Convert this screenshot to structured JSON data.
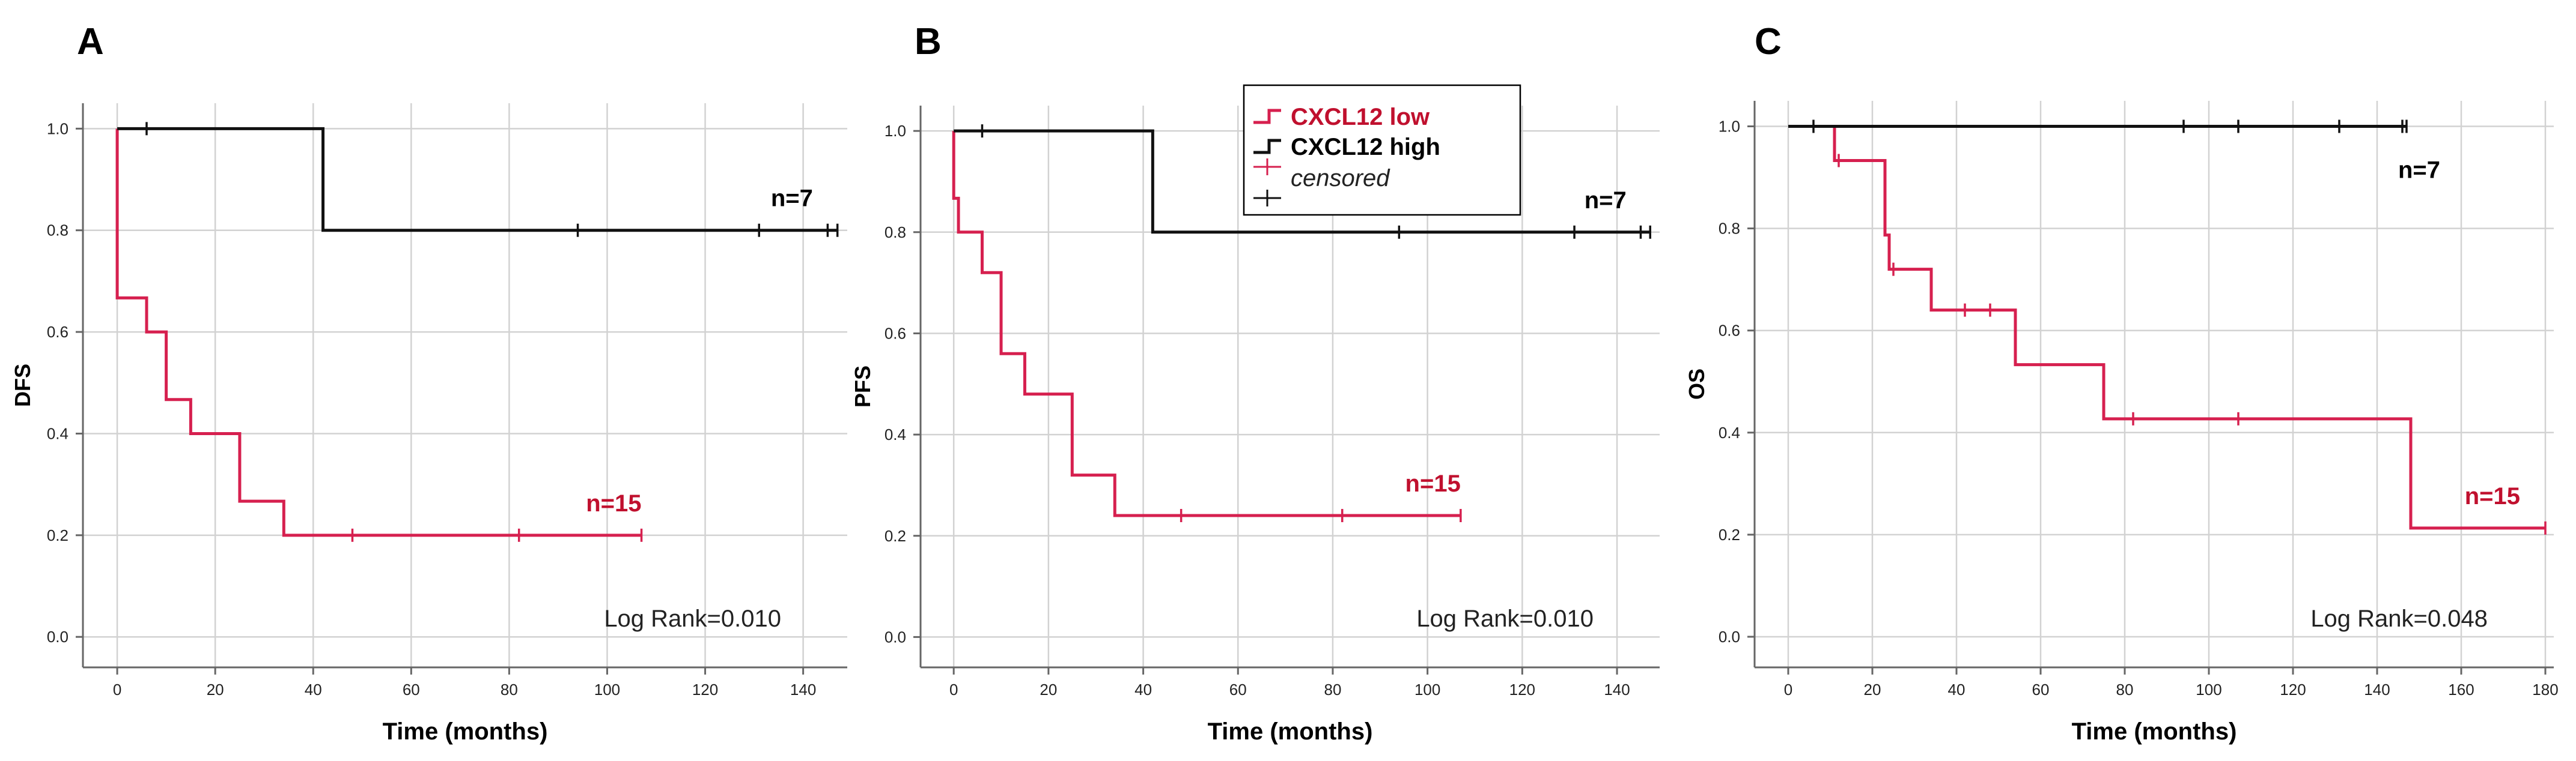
{
  "colors": {
    "low": "#d6204f",
    "high": "#111111",
    "grid": "#d2d2d2",
    "axis": "#666666"
  },
  "legend": {
    "items": [
      {
        "label": "CXCL12 low",
        "series": "low",
        "type": "step"
      },
      {
        "label": "CXCL12 high",
        "series": "high",
        "type": "step"
      },
      {
        "label": "censored",
        "series": "low",
        "type": "cross"
      },
      {
        "label": "censored",
        "series": "high",
        "type": "cross"
      }
    ]
  },
  "chart_data": [
    {
      "type": "line",
      "panel": "A",
      "ylabel": "DFS",
      "xlabel": "Time (months)",
      "xlim": [
        -7,
        149
      ],
      "ylim": [
        -0.06,
        1.05
      ],
      "xticks": [
        0,
        20,
        40,
        60,
        80,
        100,
        120,
        140
      ],
      "yticks": [
        0.0,
        0.2,
        0.4,
        0.6,
        0.8,
        1.0
      ],
      "grid": true,
      "log_rank": "Log Rank=0.010",
      "series": [
        {
          "name": "CXCL12 low",
          "key": "low",
          "n_label": "n=15",
          "n_at": [
            107,
            0.2
          ],
          "steps": [
            [
              0,
              1.0
            ],
            [
              0,
              0.667
            ],
            [
              6,
              0.667
            ],
            [
              6,
              0.6
            ],
            [
              10,
              0.6
            ],
            [
              10,
              0.467
            ],
            [
              15,
              0.467
            ],
            [
              15,
              0.4
            ],
            [
              25,
              0.4
            ],
            [
              25,
              0.267
            ],
            [
              34,
              0.267
            ],
            [
              34,
              0.2
            ],
            [
              107,
              0.2
            ]
          ],
          "censored": [
            [
              48,
              0.2
            ],
            [
              82,
              0.2
            ],
            [
              107,
              0.2
            ]
          ]
        },
        {
          "name": "CXCL12 high",
          "key": "high",
          "n_label": "n=7",
          "n_at": [
            142,
            0.8
          ],
          "steps": [
            [
              0,
              1.0
            ],
            [
              42,
              1.0
            ],
            [
              42,
              0.8
            ],
            [
              147,
              0.8
            ]
          ],
          "censored": [
            [
              6,
              1.0
            ],
            [
              94,
              0.8
            ],
            [
              131,
              0.8
            ],
            [
              145,
              0.8
            ],
            [
              147,
              0.8
            ]
          ]
        }
      ]
    },
    {
      "type": "line",
      "panel": "B",
      "ylabel": "PFS",
      "xlabel": "Time (months)",
      "xlim": [
        -7,
        149
      ],
      "ylim": [
        -0.06,
        1.05
      ],
      "xticks": [
        0,
        20,
        40,
        60,
        80,
        100,
        120,
        140
      ],
      "yticks": [
        0.0,
        0.2,
        0.4,
        0.6,
        0.8,
        1.0
      ],
      "grid": true,
      "log_rank": "Log Rank=0.010",
      "series": [
        {
          "name": "CXCL12 low",
          "key": "low",
          "n_label": "n=15",
          "n_at": [
            107,
            0.24
          ],
          "steps": [
            [
              0,
              1.0
            ],
            [
              0,
              0.867
            ],
            [
              1,
              0.867
            ],
            [
              1,
              0.8
            ],
            [
              6,
              0.8
            ],
            [
              6,
              0.72
            ],
            [
              10,
              0.72
            ],
            [
              10,
              0.56
            ],
            [
              15,
              0.56
            ],
            [
              15,
              0.48
            ],
            [
              25,
              0.48
            ],
            [
              25,
              0.32
            ],
            [
              34,
              0.32
            ],
            [
              34,
              0.24
            ],
            [
              107,
              0.24
            ]
          ],
          "censored": [
            [
              48,
              0.24
            ],
            [
              82,
              0.24
            ],
            [
              107,
              0.24
            ]
          ]
        },
        {
          "name": "CXCL12 high",
          "key": "high",
          "n_label": "n=7",
          "n_at": [
            142,
            0.8
          ],
          "steps": [
            [
              0,
              1.0
            ],
            [
              42,
              1.0
            ],
            [
              42,
              0.8
            ],
            [
              147,
              0.8
            ]
          ],
          "censored": [
            [
              6,
              1.0
            ],
            [
              94,
              0.8
            ],
            [
              131,
              0.8
            ],
            [
              145,
              0.8
            ],
            [
              147,
              0.8
            ]
          ]
        }
      ]
    },
    {
      "type": "line",
      "panel": "C",
      "ylabel": "OS",
      "xlabel": "Time (months)",
      "xlim": [
        -8,
        182
      ],
      "ylim": [
        -0.06,
        1.05
      ],
      "xticks": [
        0,
        20,
        40,
        60,
        80,
        100,
        120,
        140,
        160,
        180
      ],
      "yticks": [
        0.0,
        0.2,
        0.4,
        0.6,
        0.8,
        1.0
      ],
      "grid": true,
      "log_rank": "Log Rank=0.048",
      "series": [
        {
          "name": "CXCL12 low",
          "key": "low",
          "n_label": "n=15",
          "n_at": [
            174,
            0.213
          ],
          "steps": [
            [
              11,
              1.0
            ],
            [
              11,
              0.933
            ],
            [
              23,
              0.933
            ],
            [
              23,
              0.787
            ],
            [
              24,
              0.787
            ],
            [
              24,
              0.72
            ],
            [
              34,
              0.72
            ],
            [
              34,
              0.64
            ],
            [
              54,
              0.64
            ],
            [
              54,
              0.533
            ],
            [
              75,
              0.533
            ],
            [
              75,
              0.427
            ],
            [
              148,
              0.427
            ],
            [
              148,
              0.213
            ],
            [
              180,
              0.213
            ]
          ],
          "censored": [
            [
              12,
              0.933
            ],
            [
              25,
              0.72
            ],
            [
              42,
              0.64
            ],
            [
              48,
              0.64
            ],
            [
              82,
              0.427
            ],
            [
              107,
              0.427
            ],
            [
              180,
              0.213
            ]
          ]
        },
        {
          "name": "CXCL12 high",
          "key": "high",
          "n_label": "n=7",
          "n_at": [
            155,
            0.96
          ],
          "steps": [
            [
              0,
              1.0
            ],
            [
              147,
              1.0
            ]
          ],
          "censored": [
            [
              6,
              1.0
            ],
            [
              94,
              1.0
            ],
            [
              107,
              1.0
            ],
            [
              131,
              1.0
            ],
            [
              146,
              1.0
            ],
            [
              147,
              1.0
            ]
          ]
        }
      ]
    }
  ]
}
